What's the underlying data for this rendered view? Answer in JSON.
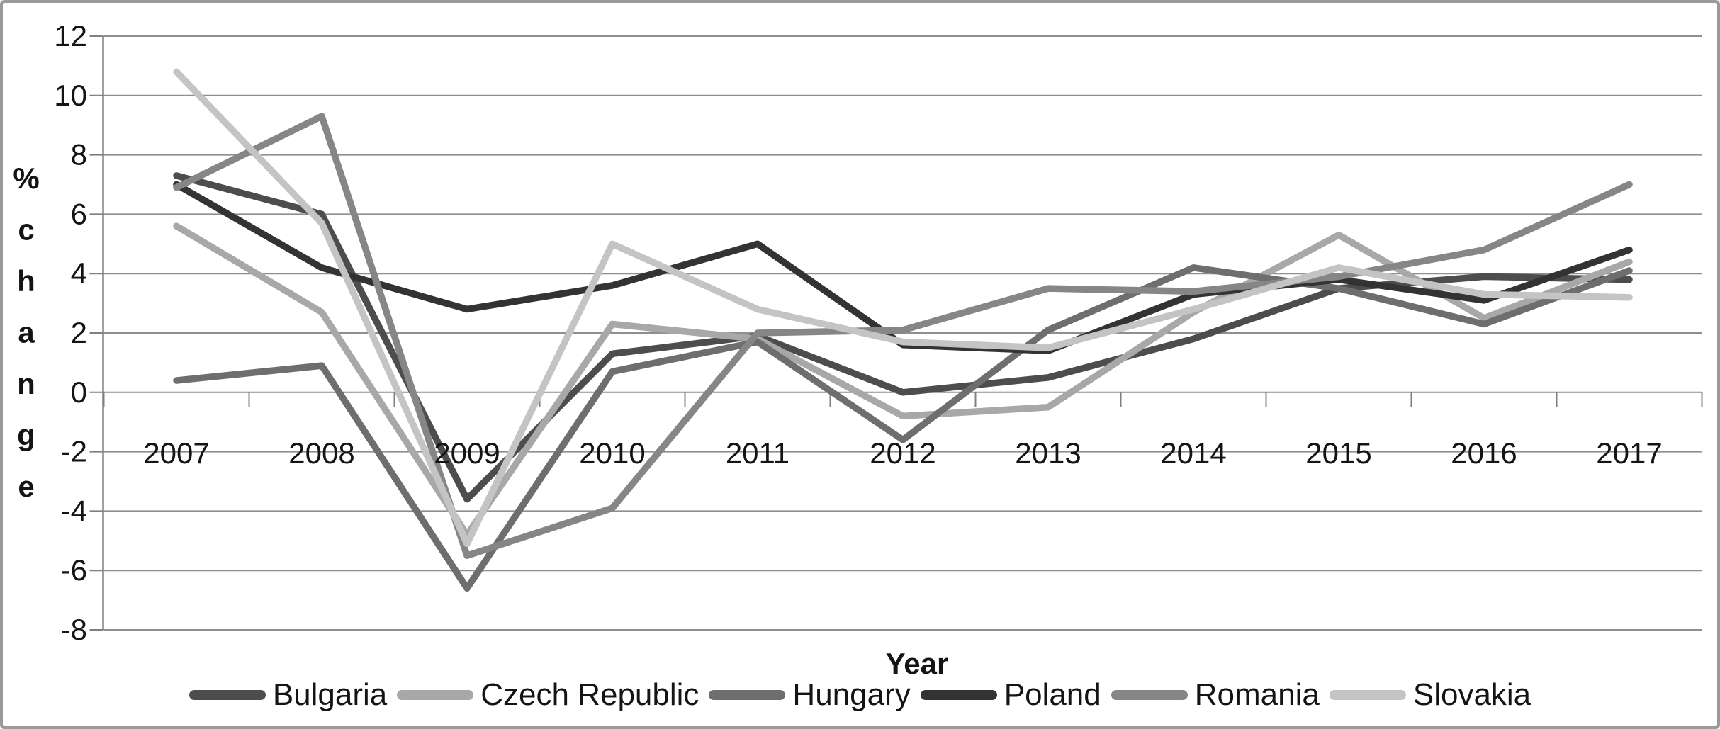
{
  "chart_data": {
    "type": "line",
    "title": "",
    "xlabel": "Year",
    "ylabel": "% change",
    "ylim": [
      -8,
      12
    ],
    "y_tick_step": 2,
    "grid": true,
    "legend_position": "bottom",
    "categories": [
      "2007",
      "2008",
      "2009",
      "2010",
      "2011",
      "2012",
      "2013",
      "2014",
      "2015",
      "2016",
      "2017"
    ],
    "y_ticks": [
      12,
      10,
      8,
      6,
      4,
      2,
      0,
      -2,
      -4,
      -6,
      -8
    ],
    "series": [
      {
        "name": "Bulgaria",
        "color": "#4d4d4d",
        "values": [
          7.3,
          6.0,
          -3.6,
          1.3,
          1.9,
          0.0,
          0.5,
          1.8,
          3.5,
          3.9,
          3.8
        ]
      },
      {
        "name": "Czech Republic",
        "color": "#a8a8a8",
        "values": [
          5.6,
          2.7,
          -4.8,
          2.3,
          1.8,
          -0.8,
          -0.5,
          2.7,
          5.3,
          2.5,
          4.4
        ]
      },
      {
        "name": "Hungary",
        "color": "#6e6e6e",
        "values": [
          0.4,
          0.9,
          -6.6,
          0.7,
          1.7,
          -1.6,
          2.1,
          4.2,
          3.5,
          2.3,
          4.1
        ]
      },
      {
        "name": "Poland",
        "color": "#333333",
        "values": [
          7.0,
          4.2,
          2.8,
          3.6,
          5.0,
          1.6,
          1.4,
          3.3,
          3.8,
          3.1,
          4.8
        ]
      },
      {
        "name": "Romania",
        "color": "#868686",
        "values": [
          6.9,
          9.3,
          -5.5,
          -3.9,
          2.0,
          2.1,
          3.5,
          3.4,
          3.9,
          4.8,
          7.0
        ]
      },
      {
        "name": "Slovakia",
        "color": "#c4c4c4",
        "values": [
          10.8,
          5.7,
          -5.1,
          5.0,
          2.8,
          1.7,
          1.5,
          2.8,
          4.2,
          3.3,
          3.2
        ]
      }
    ],
    "axis_color": "#808080",
    "grid_color": "#8f8f8f",
    "text_color": "#141414"
  }
}
